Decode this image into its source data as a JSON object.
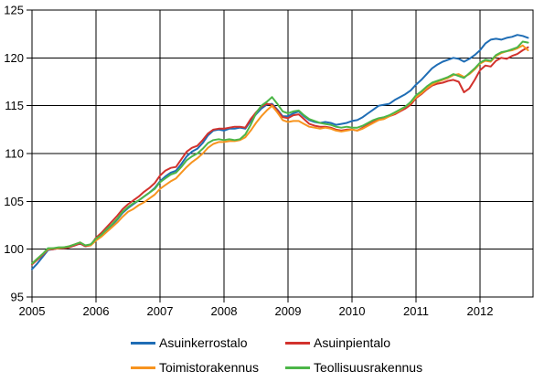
{
  "chart_data": {
    "type": "line",
    "title": "",
    "x_unit": "month",
    "x_start": "2005-01",
    "x_end": "2012-10",
    "x_tick_labels": [
      "2005",
      "2006",
      "2007",
      "2008",
      "2009",
      "2010",
      "2011",
      "2012"
    ],
    "y_ticks": [
      95,
      100,
      105,
      110,
      115,
      120,
      125
    ],
    "ylim": [
      95,
      125
    ],
    "grid": true,
    "grid_color": "#000000",
    "legend_position": "bottom",
    "legend_rows": [
      [
        0,
        1
      ],
      [
        2,
        3
      ]
    ],
    "series": [
      {
        "name": "Asuinkerrostalo",
        "color": "#1F6DB5",
        "values": [
          97.9,
          98.5,
          99.2,
          99.9,
          100.0,
          100.1,
          100.1,
          100.2,
          100.4,
          100.6,
          100.3,
          100.5,
          101.0,
          101.5,
          102.0,
          102.5,
          103.1,
          103.8,
          104.3,
          104.7,
          105.1,
          105.5,
          105.9,
          106.4,
          107.1,
          107.6,
          108.0,
          108.2,
          108.9,
          109.7,
          110.2,
          110.5,
          111.1,
          111.9,
          112.4,
          112.5,
          112.4,
          112.6,
          112.6,
          112.7,
          112.6,
          113.4,
          114.1,
          114.7,
          115.1,
          115.2,
          114.6,
          113.9,
          113.9,
          114.2,
          114.4,
          113.9,
          113.5,
          113.3,
          113.2,
          113.3,
          113.2,
          113.0,
          113.1,
          113.2,
          113.4,
          113.5,
          113.8,
          114.2,
          114.6,
          115.0,
          115.1,
          115.2,
          115.6,
          115.9,
          116.2,
          116.6,
          117.2,
          117.7,
          118.3,
          118.9,
          119.3,
          119.6,
          119.8,
          120.0,
          119.9,
          119.6,
          119.9,
          120.3,
          120.8,
          121.5,
          121.9,
          122.0,
          121.9,
          122.1,
          122.2,
          122.4,
          122.3,
          122.1
        ]
      },
      {
        "name": "Asuinpientalo",
        "color": "#D2322D",
        "values": [
          98.4,
          98.9,
          99.4,
          100.0,
          100.0,
          100.1,
          100.1,
          100.2,
          100.4,
          100.6,
          100.3,
          100.4,
          101.2,
          101.7,
          102.3,
          102.9,
          103.5,
          104.2,
          104.7,
          105.1,
          105.5,
          106.0,
          106.4,
          106.9,
          107.7,
          108.2,
          108.5,
          108.6,
          109.4,
          110.2,
          110.6,
          110.8,
          111.4,
          112.1,
          112.5,
          112.6,
          112.6,
          112.7,
          112.8,
          112.8,
          112.7,
          113.6,
          114.3,
          114.9,
          115.2,
          115.1,
          114.5,
          113.8,
          113.7,
          114.0,
          114.1,
          113.6,
          113.1,
          112.9,
          112.8,
          112.8,
          112.7,
          112.5,
          112.4,
          112.5,
          112.5,
          112.4,
          112.7,
          113.0,
          113.3,
          113.6,
          113.7,
          113.9,
          114.1,
          114.4,
          114.7,
          115.1,
          115.8,
          116.2,
          116.7,
          117.1,
          117.3,
          117.4,
          117.6,
          117.7,
          117.5,
          116.4,
          116.8,
          117.7,
          118.7,
          119.2,
          119.1,
          119.7,
          120.0,
          119.9,
          120.2,
          120.4,
          120.8,
          121.1
        ]
      },
      {
        "name": "Toimistorakennus",
        "color": "#F7941F",
        "values": [
          98.5,
          99.0,
          99.5,
          100.0,
          100.1,
          100.1,
          100.2,
          100.3,
          100.5,
          100.7,
          100.4,
          100.4,
          100.9,
          101.3,
          101.8,
          102.3,
          102.8,
          103.4,
          103.9,
          104.2,
          104.6,
          104.9,
          105.3,
          105.7,
          106.3,
          106.7,
          107.1,
          107.4,
          108.0,
          108.6,
          109.1,
          109.5,
          110.0,
          110.6,
          111.0,
          111.2,
          111.2,
          111.3,
          111.3,
          111.4,
          111.7,
          112.4,
          113.2,
          113.9,
          114.5,
          115.0,
          114.3,
          113.5,
          113.3,
          113.4,
          113.4,
          113.1,
          112.8,
          112.7,
          112.6,
          112.7,
          112.6,
          112.4,
          112.3,
          112.4,
          112.5,
          112.4,
          112.6,
          112.9,
          113.2,
          113.5,
          113.6,
          113.9,
          114.2,
          114.5,
          114.9,
          115.3,
          115.9,
          116.3,
          116.8,
          117.2,
          117.5,
          117.7,
          117.9,
          118.2,
          118.3,
          118.0,
          118.3,
          118.8,
          119.4,
          119.7,
          119.6,
          120.2,
          120.5,
          120.7,
          120.8,
          121.0,
          121.3,
          120.8
        ]
      },
      {
        "name": "Teollisuusrakennus",
        "color": "#4CB648",
        "values": [
          98.5,
          99.0,
          99.5,
          100.1,
          100.1,
          100.2,
          100.2,
          100.3,
          100.5,
          100.7,
          100.4,
          100.5,
          101.1,
          101.5,
          102.1,
          102.6,
          103.2,
          103.9,
          104.4,
          104.8,
          105.1,
          105.5,
          105.9,
          106.3,
          107.0,
          107.4,
          107.8,
          108.0,
          108.6,
          109.3,
          109.7,
          110.0,
          110.5,
          111.1,
          111.4,
          111.5,
          111.4,
          111.5,
          111.4,
          111.5,
          112.0,
          113.0,
          114.2,
          115.0,
          115.4,
          115.9,
          115.2,
          114.4,
          114.2,
          114.4,
          114.5,
          114.0,
          113.6,
          113.4,
          113.2,
          113.1,
          113.0,
          112.8,
          112.7,
          112.8,
          112.7,
          112.7,
          112.9,
          113.2,
          113.5,
          113.7,
          113.8,
          114.0,
          114.3,
          114.6,
          114.9,
          115.4,
          116.1,
          116.5,
          117.0,
          117.4,
          117.6,
          117.8,
          118.0,
          118.3,
          118.1,
          117.9,
          118.4,
          118.9,
          119.5,
          119.8,
          119.7,
          120.3,
          120.6,
          120.7,
          120.9,
          121.1,
          121.7,
          121.6
        ]
      }
    ]
  }
}
